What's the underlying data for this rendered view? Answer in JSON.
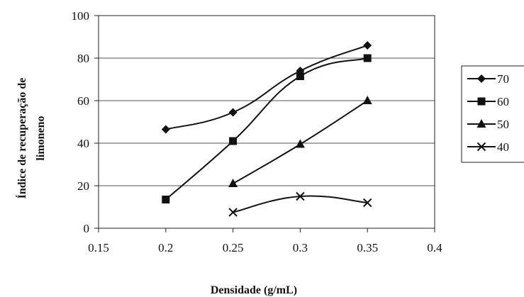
{
  "chart_data": {
    "type": "line",
    "title": "",
    "xlabel": "Densidade (g/mL)",
    "ylabel_lines": [
      "Índice de recuperação de",
      "limoneno"
    ],
    "xlim": [
      0.15,
      0.4
    ],
    "ylim": [
      0,
      100
    ],
    "x_ticks": [
      "0.15",
      "0.2",
      "0.25",
      "0.3",
      "0.35",
      "0.4"
    ],
    "y_ticks": [
      "0",
      "20",
      "40",
      "60",
      "80",
      "100"
    ],
    "grid": "horizontal",
    "legend_position": "right",
    "series": [
      {
        "name": "70",
        "marker": "diamond",
        "x": [
          0.2,
          0.25,
          0.3,
          0.35
        ],
        "y": [
          46.5,
          54.5,
          74,
          86
        ]
      },
      {
        "name": "60",
        "marker": "square",
        "x": [
          0.2,
          0.25,
          0.3,
          0.35
        ],
        "y": [
          13.5,
          41,
          71.5,
          80
        ]
      },
      {
        "name": "50",
        "marker": "triangle",
        "x": [
          0.25,
          0.3,
          0.35
        ],
        "y": [
          21,
          39.5,
          60
        ]
      },
      {
        "name": "40",
        "marker": "x",
        "x": [
          0.25,
          0.3,
          0.35
        ],
        "y": [
          7.5,
          15,
          12
        ]
      }
    ]
  }
}
